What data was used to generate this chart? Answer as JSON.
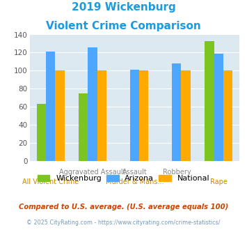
{
  "title_line1": "2019 Wickenburg",
  "title_line2": "Violent Crime Comparison",
  "wickenburg": [
    63,
    75,
    null,
    null,
    133
  ],
  "arizona": [
    121,
    126,
    101,
    108,
    119
  ],
  "national": [
    100,
    100,
    100,
    100,
    100
  ],
  "color_wickenburg": "#7cc420",
  "color_arizona": "#4da6ff",
  "color_national": "#ffaa00",
  "color_title": "#1a9be0",
  "ylim": [
    0,
    140
  ],
  "yticks": [
    0,
    20,
    40,
    60,
    80,
    100,
    120,
    140
  ],
  "bg_color": "#dce9f0",
  "top_labels": [
    "",
    "Aggravated Assault",
    "Assault",
    "Robbery",
    ""
  ],
  "bottom_labels": [
    "All Violent Crime",
    "",
    "Murder & Mans...",
    "",
    "Rape"
  ],
  "top_label_color": "#888888",
  "bottom_label_color": "#cc8800",
  "footnote1": "Compared to U.S. average. (U.S. average equals 100)",
  "footnote2": "© 2025 CityRating.com - https://www.cityrating.com/crime-statistics/",
  "footnote1_color": "#cc4400",
  "footnote2_color": "#7799bb",
  "legend_labels": [
    "Wickenburg",
    "Arizona",
    "National"
  ]
}
